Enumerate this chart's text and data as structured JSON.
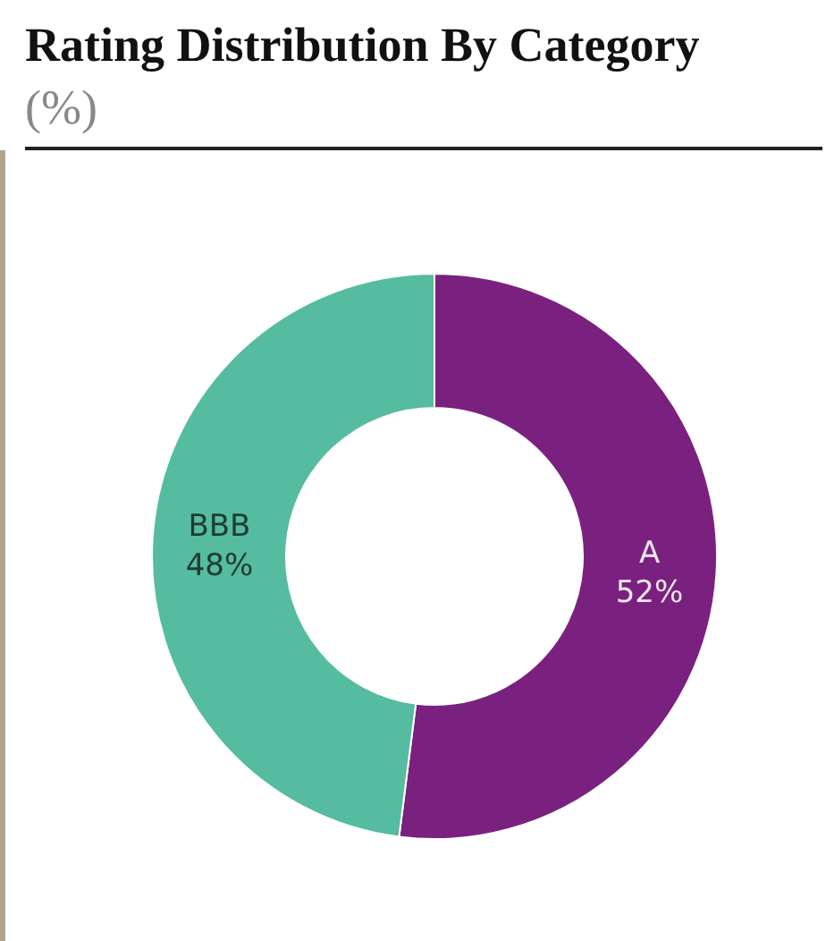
{
  "chart_data": {
    "type": "donut",
    "title": "Rating Distribution By Category",
    "subtitle": "(%)",
    "categories": [
      "A",
      "BBB"
    ],
    "values": [
      52,
      48
    ],
    "colors": [
      "#7a2180",
      "#55bca0"
    ],
    "value_labels": [
      "52%",
      "48%"
    ],
    "legend": false
  }
}
